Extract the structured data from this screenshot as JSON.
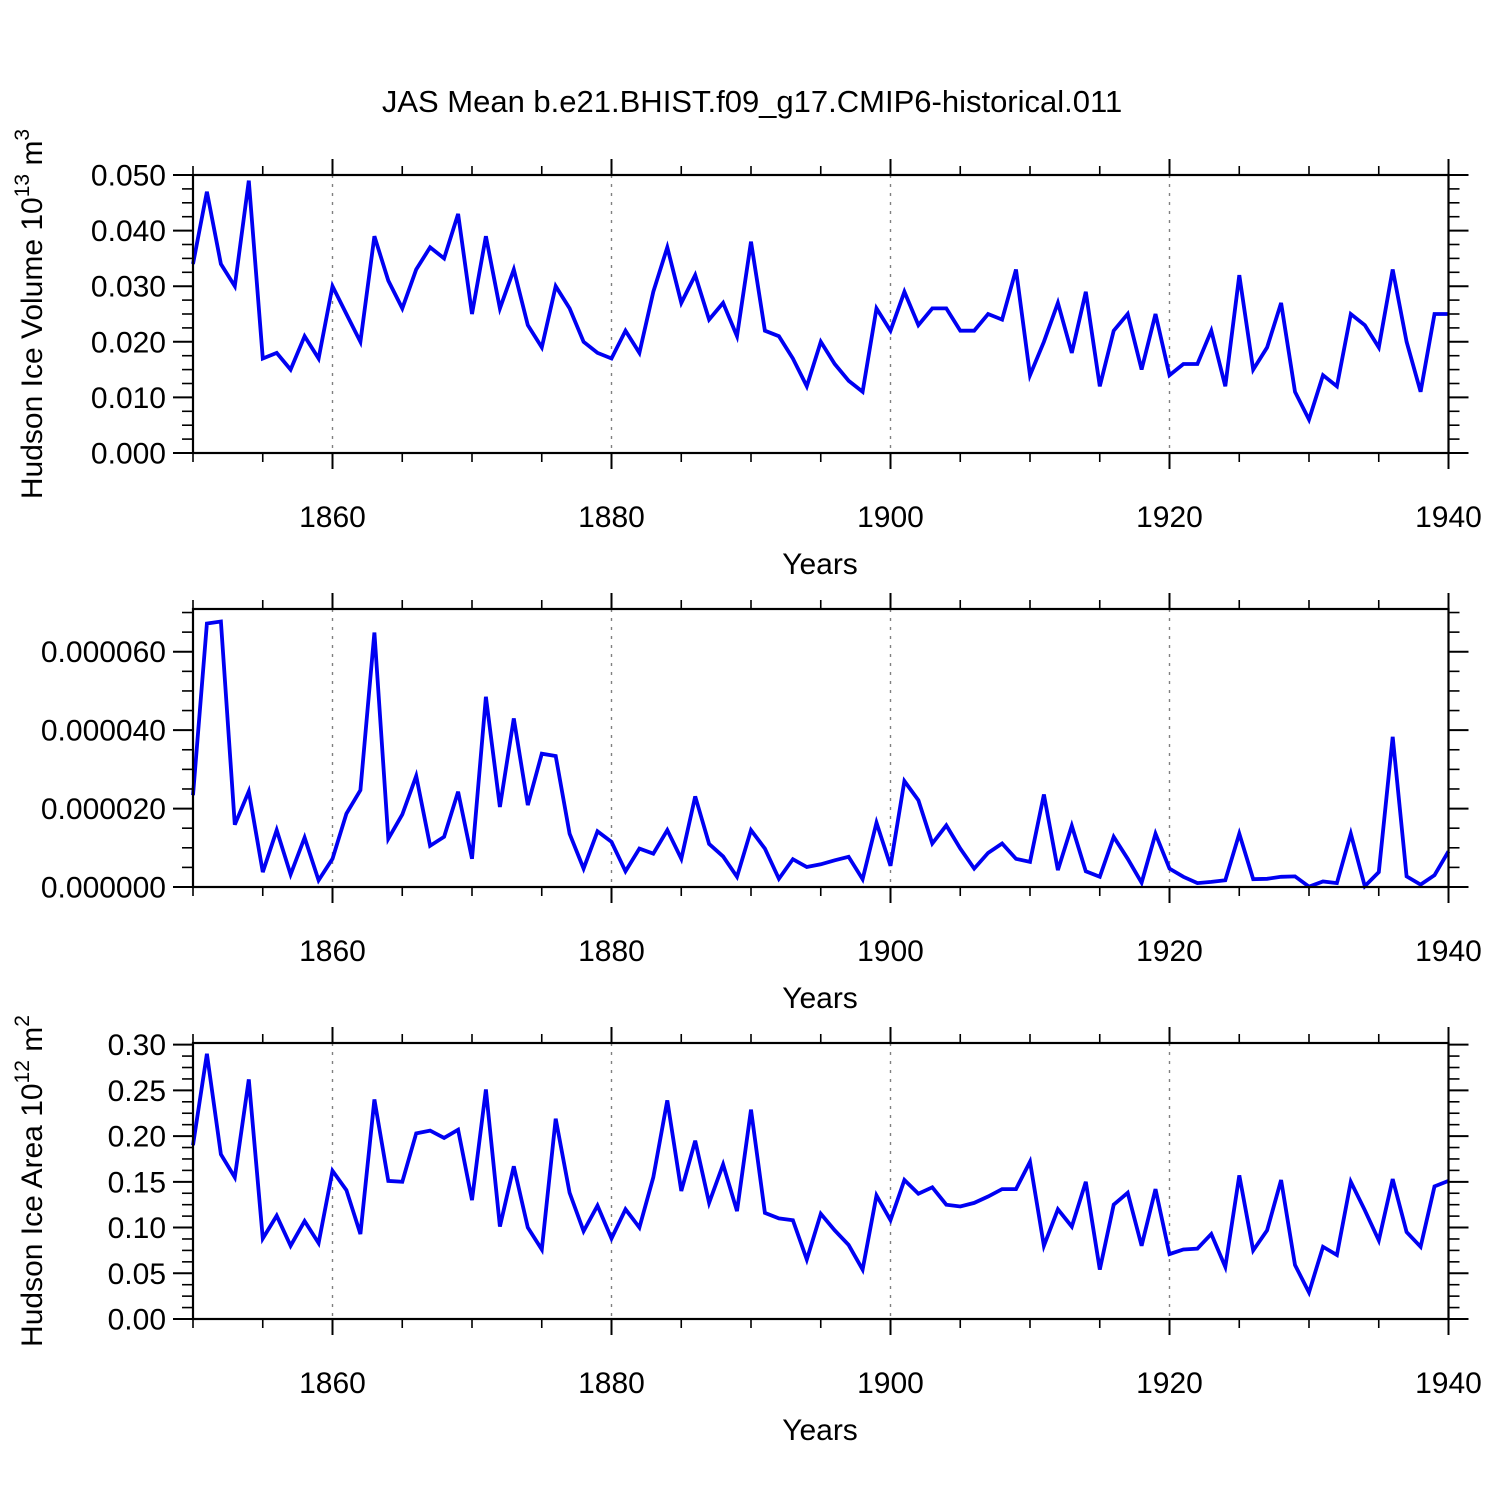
{
  "title": "JAS Mean b.e21.BHIST.f09_g17.CMIP6-historical.011",
  "accent_line_color": "#0000f2",
  "grid_color": "#808080",
  "frame_color": "#000000",
  "x_axis": {
    "label": "Years",
    "start_year": 1850,
    "end_year": 1940,
    "major_tick_years": [
      1860,
      1880,
      1900,
      1920,
      1940
    ],
    "major_tick_labels": [
      "1860",
      "1880",
      "1900",
      "1920",
      "1940"
    ],
    "minor_tick_step": 5,
    "grid_years": [
      1860,
      1880,
      1900,
      1920
    ]
  },
  "chart_data": [
    {
      "type": "line",
      "title": "",
      "xlabel": "Years",
      "ylabel": "Hudson Ice Volume 10^13 m^3",
      "ylabel_segments": [
        [
          "Hudson Ice Volume 10",
          "normal"
        ],
        [
          "13",
          "sup"
        ],
        [
          " m",
          "normal"
        ],
        [
          "3",
          "sup"
        ]
      ],
      "legend": null,
      "grid": "dashed-vertical-major",
      "x_start": 1850,
      "x_step": 1,
      "ylim": [
        0,
        0.05
      ],
      "y_tick_values": [
        0,
        0.01,
        0.02,
        0.03,
        0.04,
        0.05
      ],
      "y_tick_labels": [
        "0.000",
        "0.010",
        "0.020",
        "0.030",
        "0.040",
        "0.050"
      ],
      "y_minor_step": 0.0025,
      "values": [
        0.034,
        0.047,
        0.034,
        0.03,
        0.049,
        0.017,
        0.018,
        0.015,
        0.021,
        0.017,
        0.03,
        0.025,
        0.02,
        0.039,
        0.031,
        0.026,
        0.033,
        0.037,
        0.035,
        0.043,
        0.025,
        0.039,
        0.026,
        0.033,
        0.023,
        0.019,
        0.03,
        0.026,
        0.02,
        0.018,
        0.017,
        0.022,
        0.018,
        0.029,
        0.037,
        0.027,
        0.032,
        0.024,
        0.027,
        0.021,
        0.038,
        0.022,
        0.021,
        0.017,
        0.012,
        0.02,
        0.016,
        0.013,
        0.011,
        0.026,
        0.022,
        0.029,
        0.023,
        0.026,
        0.026,
        0.022,
        0.022,
        0.025,
        0.024,
        0.033,
        0.014,
        0.02,
        0.027,
        0.018,
        0.029,
        0.012,
        0.022,
        0.025,
        0.015,
        0.025,
        0.014,
        0.016,
        0.016,
        0.022,
        0.012,
        0.032,
        0.015,
        0.019,
        0.027,
        0.011,
        0.006,
        0.014,
        0.012,
        0.025,
        0.023,
        0.019,
        0.033,
        0.02,
        0.011,
        0.025,
        0.025
      ]
    },
    {
      "type": "line",
      "title": "",
      "xlabel": "Years",
      "ylabel": null,
      "ylabel_segments": null,
      "legend": null,
      "grid": "dashed-vertical-major",
      "x_start": 1850,
      "x_step": 1,
      "ylim": [
        0,
        7.09e-05
      ],
      "y_tick_values": [
        0,
        2e-05,
        4e-05,
        6e-05
      ],
      "y_tick_labels": [
        "0.000000",
        "0.000020",
        "0.000040",
        "0.000060"
      ],
      "y_minor_step": 5e-06,
      "values": [
        2.34e-05,
        6.72e-05,
        6.77e-05,
        1.59e-05,
        2.44e-05,
        3.8e-06,
        1.45e-05,
        3.2e-06,
        1.26e-05,
        1.7e-06,
        7.2e-06,
        1.87e-05,
        2.47e-05,
        6.49e-05,
        1.23e-05,
        1.85e-05,
        2.83e-05,
        1.05e-05,
        1.28e-05,
        2.43e-05,
        7.2e-06,
        4.85e-05,
        2.04e-05,
        4.3e-05,
        2.09e-05,
        3.4e-05,
        3.34e-05,
        1.36e-05,
        4.7e-06,
        1.42e-05,
        1.15e-05,
        4e-06,
        9.8e-06,
        8.5e-06,
        1.45e-05,
        7.2e-06,
        2.31e-05,
        1.1e-05,
        7.8e-06,
        2.6e-06,
        1.45e-05,
        9.8e-06,
        2.1e-06,
        7.1e-06,
        5.1e-06,
        5.8e-06,
        6.8e-06,
        7.7e-06,
        2e-06,
        1.64e-05,
        5.4e-06,
        2.7e-05,
        2.21e-05,
        1.11e-05,
        1.57e-05,
        9.8e-06,
        4.7e-06,
        8.7e-06,
        1.11e-05,
        7.2e-06,
        6.4e-06,
        2.36e-05,
        4.3e-06,
        1.56e-05,
        4e-06,
        2.6e-06,
        1.28e-05,
        7.2e-06,
        1.1e-06,
        1.36e-05,
        4.7e-06,
        2.6e-06,
        1e-06,
        1.3e-06,
        1.7e-06,
        1.36e-05,
        2e-06,
        2.1e-06,
        2.6e-06,
        2.7e-06,
        1e-07,
        1.4e-06,
        1e-06,
        1.36e-05,
        2e-07,
        3.8e-06,
        3.83e-05,
        2.7e-06,
        6e-07,
        3e-06,
        9.1e-06
      ]
    },
    {
      "type": "line",
      "title": "",
      "xlabel": "Years",
      "ylabel": "Hudson Ice Area 10^12 m^2",
      "ylabel_segments": [
        [
          "Hudson Ice Area 10",
          "normal"
        ],
        [
          "12",
          "sup"
        ],
        [
          " m",
          "normal"
        ],
        [
          "2",
          "sup"
        ]
      ],
      "legend": null,
      "grid": "dashed-vertical-major",
      "x_start": 1850,
      "x_step": 1,
      "ylim": [
        0,
        0.3018
      ],
      "y_tick_values": [
        0,
        0.05,
        0.1,
        0.15,
        0.2,
        0.25,
        0.3
      ],
      "y_tick_labels": [
        "0.00",
        "0.05",
        "0.10",
        "0.15",
        "0.20",
        "0.25",
        "0.30"
      ],
      "y_minor_step": 0.0125,
      "values": [
        0.19,
        0.29,
        0.18,
        0.155,
        0.262,
        0.088,
        0.113,
        0.08,
        0.107,
        0.083,
        0.162,
        0.141,
        0.093,
        0.24,
        0.151,
        0.15,
        0.203,
        0.206,
        0.198,
        0.207,
        0.13,
        0.251,
        0.101,
        0.167,
        0.1,
        0.076,
        0.219,
        0.138,
        0.096,
        0.124,
        0.088,
        0.12,
        0.1,
        0.155,
        0.239,
        0.14,
        0.195,
        0.127,
        0.169,
        0.118,
        0.229,
        0.116,
        0.11,
        0.108,
        0.065,
        0.115,
        0.097,
        0.081,
        0.054,
        0.135,
        0.108,
        0.152,
        0.137,
        0.144,
        0.125,
        0.123,
        0.127,
        0.134,
        0.142,
        0.142,
        0.172,
        0.08,
        0.12,
        0.101,
        0.15,
        0.054,
        0.125,
        0.138,
        0.08,
        0.142,
        0.071,
        0.076,
        0.077,
        0.093,
        0.057,
        0.157,
        0.075,
        0.097,
        0.152,
        0.059,
        0.029,
        0.079,
        0.07,
        0.15,
        0.119,
        0.086,
        0.153,
        0.095,
        0.079,
        0.145,
        0.151
      ]
    }
  ]
}
